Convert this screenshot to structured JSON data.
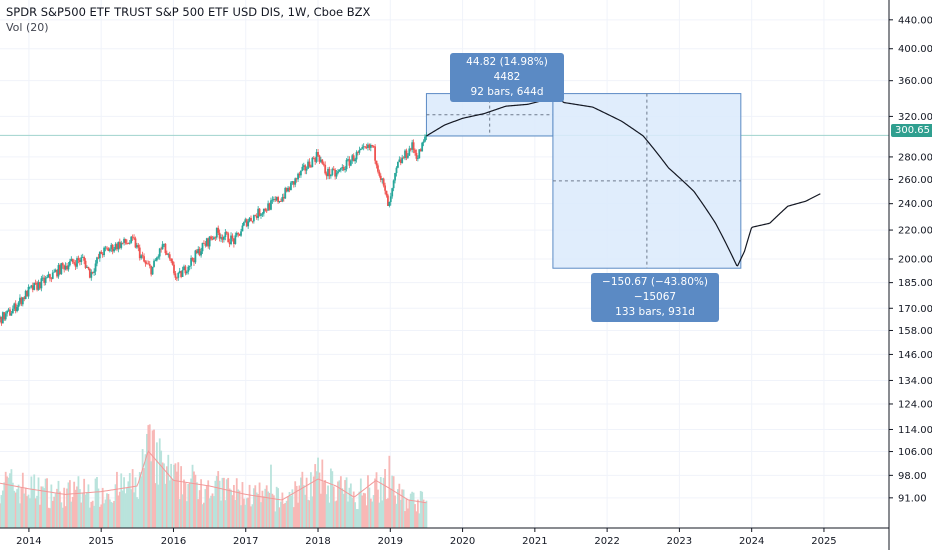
{
  "header": {
    "title": "SPDR S&P500 ETF TRUST S&P 500 ETF USD DIS, 1W, Cboe BZX",
    "volume_label": "Vol (20)"
  },
  "current_price_label": "300.65",
  "measure_up": {
    "line1": "44.82 (14.98%) 4482",
    "line2": "92 bars, 644d"
  },
  "measure_down": {
    "line1": "−150.67 (−43.80%) −15067",
    "line2": "133 bars, 931d"
  },
  "chart_data": {
    "type": "line",
    "price_scale": "log",
    "ylim": [
      88,
      450
    ],
    "y_ticks": [
      "440.00",
      "400.00",
      "360.00",
      "320.00",
      "280.00",
      "260.00",
      "240.00",
      "220.00",
      "200.00",
      "185.00",
      "170.00",
      "158.00",
      "146.00",
      "134.00",
      "124.00",
      "114.00",
      "106.00",
      "98.00",
      "91.00"
    ],
    "y_tick_values": [
      440,
      400,
      360,
      320,
      280,
      260,
      240,
      220,
      200,
      185,
      170,
      158,
      146,
      134,
      124,
      114,
      106,
      98,
      91
    ],
    "x_ticks": [
      "2014",
      "2015",
      "2016",
      "2017",
      "2018",
      "2019",
      "2020",
      "2021",
      "2022",
      "2023",
      "2024",
      "2025"
    ],
    "x_tick_values": [
      2014,
      2015,
      2016,
      2017,
      2018,
      2019,
      2020,
      2021,
      2022,
      2023,
      2024,
      2025
    ],
    "xlim": [
      2013.6,
      2025.9
    ],
    "price_history": {
      "x": [
        2013.6,
        2013.75,
        2014.0,
        2014.25,
        2014.5,
        2014.75,
        2014.85,
        2015.0,
        2015.25,
        2015.45,
        2015.6,
        2015.7,
        2015.85,
        2016.05,
        2016.15,
        2016.4,
        2016.6,
        2016.85,
        2017.0,
        2017.5,
        2018.0,
        2018.1,
        2018.25,
        2018.5,
        2018.75,
        2018.98,
        2019.1,
        2019.3,
        2019.38,
        2019.5
      ],
      "y": [
        164,
        168,
        180,
        187,
        196,
        200,
        190,
        204,
        210,
        212,
        197,
        193,
        209,
        187,
        193,
        208,
        218,
        212,
        226,
        245,
        283,
        266,
        264,
        280,
        290,
        236,
        272,
        290,
        280,
        300
      ]
    },
    "projection": {
      "x": [
        2019.5,
        2019.75,
        2020.0,
        2020.3,
        2020.6,
        2020.9,
        2021.1,
        2021.25,
        2021.4,
        2021.8,
        2022.2,
        2022.5,
        2022.85,
        2023.2,
        2023.5,
        2023.8,
        2023.9,
        2024.0,
        2024.25,
        2024.5,
        2024.75,
        2024.95
      ],
      "y": [
        300,
        311,
        318,
        323,
        331,
        333,
        337,
        345,
        335,
        330,
        315,
        300,
        270,
        250,
        225,
        195,
        205,
        222,
        225,
        238,
        242,
        248
      ]
    },
    "volume_profile": {
      "x": [
        2013.6,
        2014.0,
        2014.5,
        2015.0,
        2015.5,
        2015.65,
        2016.0,
        2016.5,
        2017.0,
        2017.5,
        2018.0,
        2018.25,
        2018.5,
        2018.8,
        2019.0,
        2019.25,
        2019.5
      ],
      "y": [
        0.32,
        0.28,
        0.24,
        0.26,
        0.3,
        0.55,
        0.34,
        0.3,
        0.24,
        0.2,
        0.35,
        0.3,
        0.22,
        0.34,
        0.28,
        0.2,
        0.18
      ]
    },
    "current_price": 300.65,
    "measure_up_range": {
      "x": [
        2019.5,
        2021.25
      ],
      "y": [
        300,
        345
      ]
    },
    "measure_down_range": {
      "x": [
        2021.25,
        2023.85
      ],
      "y": [
        345,
        194
      ]
    },
    "colors": {
      "up": "#26a69a",
      "down": "#ef5350",
      "volume_up": "#b9e3dc",
      "volume_down": "#f8b8b6",
      "projection": "#131722",
      "measure_fill": "#dbeafc",
      "measure_stroke": "#5b8ac4",
      "price_line": "#9fd3cd",
      "vol_ma": "#f29999"
    },
    "grid": true
  }
}
